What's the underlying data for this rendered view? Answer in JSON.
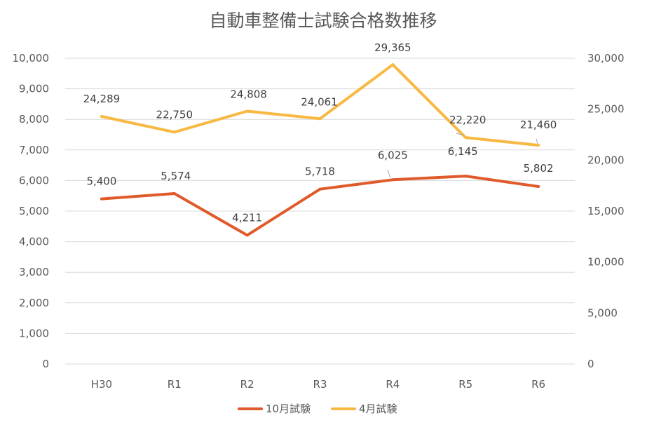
{
  "chart_data": {
    "type": "line",
    "title": "自動車整備士試験合格数推移",
    "categories": [
      "H30",
      "R1",
      "R2",
      "R3",
      "R4",
      "R5",
      "R6"
    ],
    "series": [
      {
        "name": "10月試験",
        "axis": "left",
        "color": "#e05a2b",
        "values": [
          5400,
          5574,
          4211,
          5718,
          6025,
          6145,
          5802
        ],
        "labels": [
          "5,400",
          "5,574",
          "4,211",
          "5,718",
          "6,025",
          "6,145",
          "5,802"
        ]
      },
      {
        "name": "4月試験",
        "axis": "right",
        "color": "#f7b942",
        "values": [
          24289,
          22750,
          24808,
          24061,
          29365,
          22220,
          21460
        ],
        "labels": [
          "24,289",
          "22,750",
          "24,808",
          "24,061",
          "29,365",
          "22,220",
          "21,460"
        ]
      }
    ],
    "y_left": {
      "min": 0,
      "max": 10000,
      "ticks": [
        0,
        1000,
        2000,
        3000,
        4000,
        5000,
        6000,
        7000,
        8000,
        9000,
        10000
      ],
      "tick_labels": [
        "0",
        "1,000",
        "2,000",
        "3,000",
        "4,000",
        "5,000",
        "6,000",
        "7,000",
        "8,000",
        "9,000",
        "10,000"
      ]
    },
    "y_right": {
      "min": 0,
      "max": 30000,
      "ticks": [
        0,
        5000,
        10000,
        15000,
        20000,
        25000,
        30000
      ],
      "tick_labels": [
        "0",
        "5,000",
        "10,000",
        "15,000",
        "20,000",
        "25,000",
        "30,000"
      ]
    },
    "grid": true,
    "legend": "bottom"
  }
}
